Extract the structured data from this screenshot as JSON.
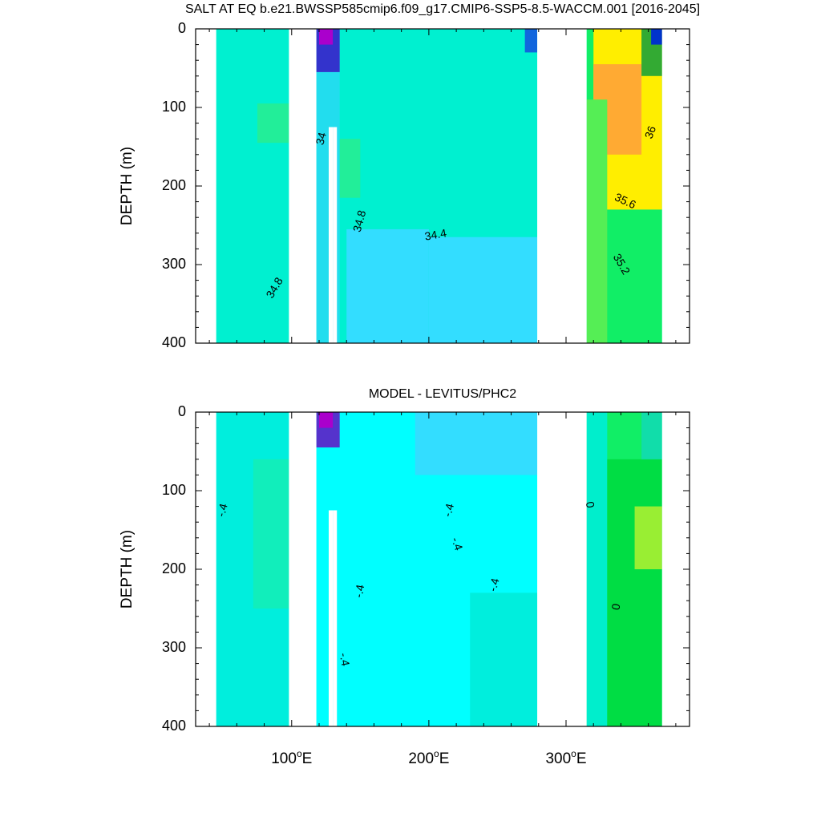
{
  "chart_data": [
    {
      "type": "heatmap",
      "title": "SALT AT EQ b.e21.BWSSP585cmip6.f09_g17.CMIP6-SSP5-8.5-WACCM.001 [2016-2045]",
      "xlabel": "",
      "ylabel": "DEPTH (m)",
      "xlim": [
        30,
        390
      ],
      "ylim": [
        400,
        0
      ],
      "y_inverted": true,
      "yticks": [
        "0",
        "100",
        "200",
        "300",
        "400"
      ],
      "xticks": [
        {
          "value": 100,
          "label": "100",
          "deg": "o",
          "suffix": "E"
        },
        {
          "value": 200,
          "label": "200",
          "deg": "o",
          "suffix": "E"
        },
        {
          "value": 300,
          "label": "300",
          "deg": "o",
          "suffix": "E"
        }
      ],
      "background_color": "#00ffdd",
      "land_gaps_lon": [
        [
          30,
          45
        ],
        [
          98,
          118
        ],
        [
          279,
          315
        ],
        [
          370,
          390
        ]
      ],
      "regions": [
        {
          "lon": [
            45,
            98
          ],
          "depth": [
            0,
            400
          ],
          "color": "#00f0d0"
        },
        {
          "lon": [
            75,
            98
          ],
          "depth": [
            95,
            145
          ],
          "color": "#22ee99"
        },
        {
          "lon": [
            118,
            279
          ],
          "depth": [
            0,
            400
          ],
          "color": "#00f0d0"
        },
        {
          "lon": [
            118,
            135
          ],
          "depth": [
            0,
            400
          ],
          "color": "#22ddee"
        },
        {
          "lon": [
            140,
            200
          ],
          "depth": [
            255,
            400
          ],
          "color": "#33ddff"
        },
        {
          "lon": [
            200,
            279
          ],
          "depth": [
            265,
            400
          ],
          "color": "#33ddff"
        },
        {
          "lon": [
            135,
            150
          ],
          "depth": [
            140,
            215
          ],
          "color": "#22ee99"
        },
        {
          "lon": [
            118,
            135
          ],
          "depth": [
            0,
            55
          ],
          "color": "#3333cc"
        },
        {
          "lon": [
            120,
            130
          ],
          "depth": [
            0,
            20
          ],
          "color": "#aa00cc"
        },
        {
          "lon": [
            270,
            279
          ],
          "depth": [
            0,
            30
          ],
          "color": "#1166dd"
        },
        {
          "lon": [
            315,
            370
          ],
          "depth": [
            0,
            400
          ],
          "color": "#11ee66"
        },
        {
          "lon": [
            320,
            370
          ],
          "depth": [
            0,
            230
          ],
          "color": "#ffee00"
        },
        {
          "lon": [
            320,
            355
          ],
          "depth": [
            45,
            160
          ],
          "color": "#ffaa33"
        },
        {
          "lon": [
            315,
            330
          ],
          "depth": [
            90,
            400
          ],
          "color": "#55ee55"
        },
        {
          "lon": [
            355,
            370
          ],
          "depth": [
            0,
            60
          ],
          "color": "#33aa33"
        },
        {
          "lon": [
            362,
            370
          ],
          "depth": [
            0,
            20
          ],
          "color": "#0033cc"
        }
      ],
      "white_strips_lon": [
        [
          127,
          130
        ],
        [
          130,
          133
        ]
      ],
      "contour_labels": [
        {
          "text": "34.8",
          "lon": 88,
          "depth": 330,
          "angle": -60
        },
        {
          "text": "34",
          "lon": 122,
          "depth": 140,
          "angle": -75
        },
        {
          "text": "34.8",
          "lon": 150,
          "depth": 245,
          "angle": -75
        },
        {
          "text": "34.4",
          "lon": 205,
          "depth": 263,
          "angle": -10
        },
        {
          "text": "36",
          "lon": 362,
          "depth": 132,
          "angle": -70
        },
        {
          "text": "35.6",
          "lon": 343,
          "depth": 220,
          "angle": 25
        },
        {
          "text": "35.2",
          "lon": 340,
          "depth": 300,
          "angle": 60
        }
      ]
    },
    {
      "type": "heatmap",
      "title": "MODEL - LEVITUS/PHC2",
      "xlabel": "",
      "ylabel": "DEPTH (m)",
      "xlim": [
        30,
        390
      ],
      "ylim": [
        400,
        0
      ],
      "y_inverted": true,
      "yticks": [
        "0",
        "100",
        "200",
        "300",
        "400"
      ],
      "xticks": [
        {
          "value": 100,
          "label": "100",
          "deg": "o",
          "suffix": "E"
        },
        {
          "value": 200,
          "label": "200",
          "deg": "o",
          "suffix": "E"
        },
        {
          "value": 300,
          "label": "300",
          "deg": "o",
          "suffix": "E"
        }
      ],
      "background_color": "#00ffee",
      "land_gaps_lon": [
        [
          30,
          45
        ],
        [
          98,
          118
        ],
        [
          279,
          315
        ],
        [
          370,
          390
        ]
      ],
      "regions": [
        {
          "lon": [
            45,
            98
          ],
          "depth": [
            0,
            400
          ],
          "color": "#00eedd"
        },
        {
          "lon": [
            72,
            98
          ],
          "depth": [
            60,
            250
          ],
          "color": "#11eebb"
        },
        {
          "lon": [
            118,
            279
          ],
          "depth": [
            0,
            400
          ],
          "color": "#00ffff"
        },
        {
          "lon": [
            190,
            279
          ],
          "depth": [
            0,
            80
          ],
          "color": "#33ddff"
        },
        {
          "lon": [
            230,
            279
          ],
          "depth": [
            230,
            400
          ],
          "color": "#00eedd"
        },
        {
          "lon": [
            118,
            135
          ],
          "depth": [
            0,
            45
          ],
          "color": "#5533cc"
        },
        {
          "lon": [
            120,
            130
          ],
          "depth": [
            0,
            20
          ],
          "color": "#aa00cc"
        },
        {
          "lon": [
            315,
            370
          ],
          "depth": [
            0,
            400
          ],
          "color": "#11ee66"
        },
        {
          "lon": [
            315,
            330
          ],
          "depth": [
            0,
            400
          ],
          "color": "#00eecc"
        },
        {
          "lon": [
            330,
            370
          ],
          "depth": [
            60,
            400
          ],
          "color": "#00dd44"
        },
        {
          "lon": [
            350,
            370
          ],
          "depth": [
            120,
            200
          ],
          "color": "#99ee33"
        },
        {
          "lon": [
            355,
            370
          ],
          "depth": [
            0,
            60
          ],
          "color": "#11ddaa"
        }
      ],
      "white_strips_lon": [
        [
          127,
          130
        ],
        [
          130,
          133
        ]
      ],
      "contour_labels": [
        {
          "text": "-.4",
          "lon": 50,
          "depth": 125,
          "angle": -75
        },
        {
          "text": "-.4",
          "lon": 150,
          "depth": 228,
          "angle": -80
        },
        {
          "text": "-.4",
          "lon": 138,
          "depth": 315,
          "angle": 80
        },
        {
          "text": "-.4",
          "lon": 215,
          "depth": 125,
          "angle": -75
        },
        {
          "text": "-.4",
          "lon": 220,
          "depth": 168,
          "angle": 70
        },
        {
          "text": "-.4",
          "lon": 248,
          "depth": 220,
          "angle": -75
        },
        {
          "text": "0",
          "lon": 317,
          "depth": 118,
          "angle": 80
        },
        {
          "text": "0",
          "lon": 337,
          "depth": 248,
          "angle": -80
        }
      ]
    }
  ]
}
